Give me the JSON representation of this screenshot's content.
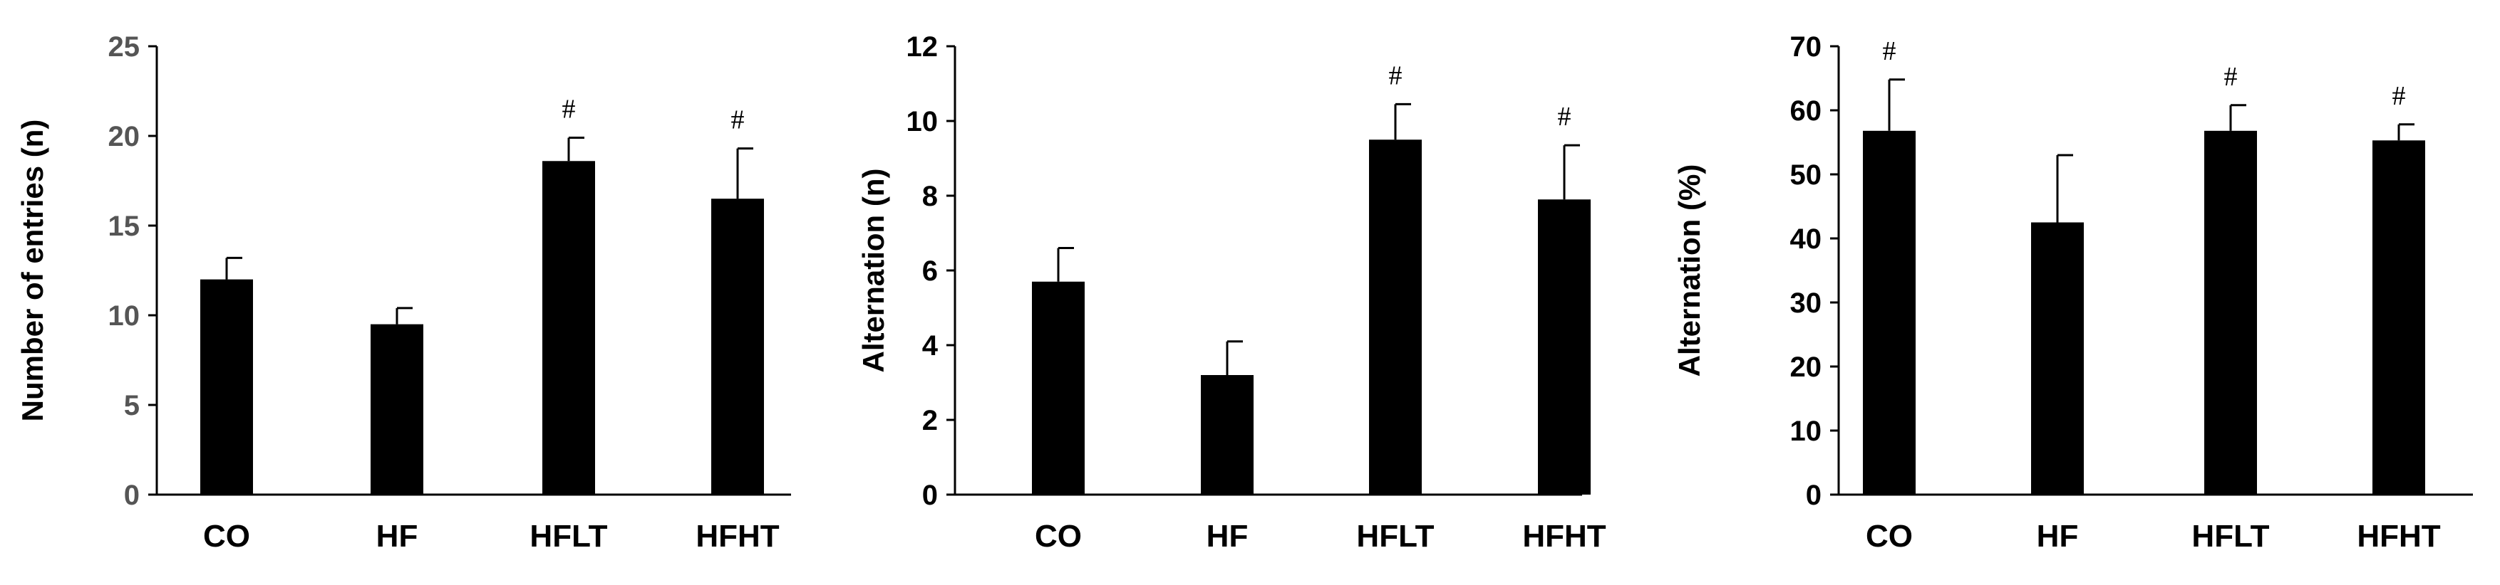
{
  "chart_data": [
    {
      "type": "bar",
      "title": "",
      "xlabel": "",
      "ylabel": "Number of entries (n)",
      "ylim": [
        0,
        25
      ],
      "yticks": [
        "0",
        "5",
        "10",
        "15",
        "20",
        "25"
      ],
      "ytick_color": "#555555",
      "categories": [
        "CO",
        "HF",
        "HFLT",
        "HFHT"
      ],
      "values": [
        12.0,
        9.5,
        18.6,
        16.5
      ],
      "errors": [
        1.2,
        0.9,
        1.3,
        2.8
      ],
      "annotations": [
        "",
        "",
        "#",
        "#"
      ],
      "bar_color": "#000000",
      "grid": false,
      "legend": "none"
    },
    {
      "type": "bar",
      "title": "",
      "xlabel": "",
      "ylabel": "Alternation (n)",
      "ylim": [
        0,
        12
      ],
      "yticks": [
        "0",
        "2",
        "4",
        "6",
        "8",
        "10",
        "12"
      ],
      "ytick_color": "#000000",
      "categories": [
        "CO",
        "HF",
        "HFLT",
        "HFHT"
      ],
      "values": [
        5.7,
        3.2,
        9.5,
        7.9
      ],
      "errors": [
        0.9,
        0.9,
        0.95,
        1.45
      ],
      "annotations": [
        "",
        "",
        "#",
        "#"
      ],
      "bar_color": "#000000",
      "grid": false,
      "legend": "none"
    },
    {
      "type": "bar",
      "title": "",
      "xlabel": "",
      "ylabel": "Alternation (%)",
      "ylim": [
        0,
        70
      ],
      "yticks": [
        "0",
        "10",
        "20",
        "30",
        "40",
        "50",
        "60",
        "70"
      ],
      "ytick_color": "#000000",
      "categories": [
        "CO",
        "HF",
        "HFLT",
        "HFHT"
      ],
      "values": [
        56.8,
        42.5,
        56.8,
        55.3
      ],
      "errors": [
        8.0,
        10.5,
        4.0,
        2.5
      ],
      "annotations": [
        "#",
        "",
        "#",
        "#"
      ],
      "bar_color": "#000000",
      "grid": false,
      "legend": "none"
    }
  ]
}
